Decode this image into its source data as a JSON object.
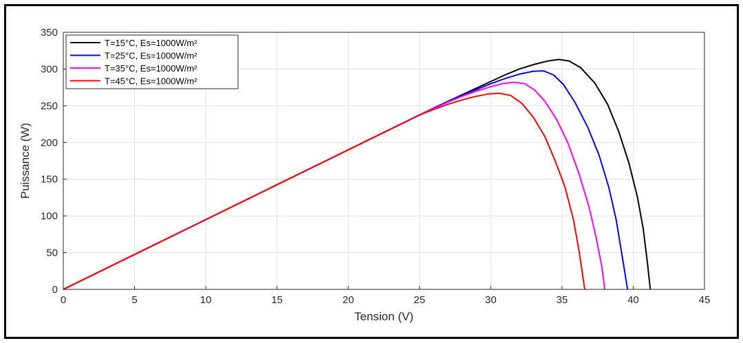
{
  "chart_data": {
    "type": "line",
    "xlabel": "Tension (V)",
    "ylabel": "Puissance (W)",
    "xlim": [
      0,
      45
    ],
    "ylim": [
      0,
      350
    ],
    "xticks": [
      0,
      5,
      10,
      15,
      20,
      25,
      30,
      35,
      40,
      45
    ],
    "yticks": [
      0,
      50,
      100,
      150,
      200,
      250,
      300,
      350
    ],
    "grid": true,
    "legend_position": "top-left",
    "series": [
      {
        "name": "T=15°C, Es=1000W/m²",
        "color": "#000000",
        "x": [
          0,
          5,
          10,
          15,
          20,
          25,
          27,
          28,
          29,
          30,
          31,
          32,
          33,
          34,
          34.8,
          35.5,
          36.3,
          37.3,
          38.2,
          39,
          39.7,
          40.3,
          40.7,
          41,
          41.2
        ],
        "y": [
          0,
          47.5,
          95,
          142.5,
          190,
          237.5,
          256,
          265,
          274,
          283,
          292,
          300,
          306,
          311,
          313,
          311,
          302,
          281,
          252,
          214,
          172,
          125,
          83,
          35,
          0
        ]
      },
      {
        "name": "T=25°C, Es=1000W/m²",
        "color": "#0000ff",
        "x": [
          0,
          5,
          10,
          15,
          20,
          25,
          27,
          28,
          29,
          30,
          31,
          32,
          33,
          33.7,
          34.4,
          35.1,
          35.9,
          36.8,
          37.6,
          38.3,
          38.8,
          39.2,
          39.6
        ],
        "y": [
          0,
          47.5,
          95,
          142.5,
          190,
          237.5,
          256,
          264,
          272,
          280,
          287,
          293,
          297,
          297.5,
          292,
          279,
          255,
          221,
          183,
          138,
          95,
          48,
          0
        ]
      },
      {
        "name": "T=35°C, Es=1000W/m²",
        "color": "#ff00ff",
        "x": [
          0,
          5,
          10,
          15,
          20,
          25,
          27,
          28,
          29,
          30,
          30.8,
          31.6,
          32.4,
          33.1,
          33.8,
          34.6,
          35.4,
          36.2,
          36.9,
          37.4,
          37.8,
          38
        ],
        "y": [
          0,
          47.5,
          95,
          142.5,
          190,
          237.5,
          255,
          263,
          270,
          276,
          280,
          282,
          280,
          271,
          256,
          232,
          200,
          157,
          112,
          70,
          30,
          0
        ]
      },
      {
        "name": "T=45°C, Es=1000W/m²",
        "color": "#ff0000",
        "x": [
          0,
          5,
          10,
          15,
          20,
          25,
          26,
          27,
          28,
          29,
          29.8,
          30.6,
          31.4,
          32.2,
          33,
          33.8,
          34.5,
          35.2,
          35.8,
          36.2,
          36.6
        ],
        "y": [
          0,
          47.5,
          95,
          142.5,
          190,
          237.5,
          245,
          252,
          258,
          263,
          266,
          267,
          264,
          253,
          234,
          208,
          176,
          140,
          95,
          52,
          0
        ]
      }
    ]
  }
}
